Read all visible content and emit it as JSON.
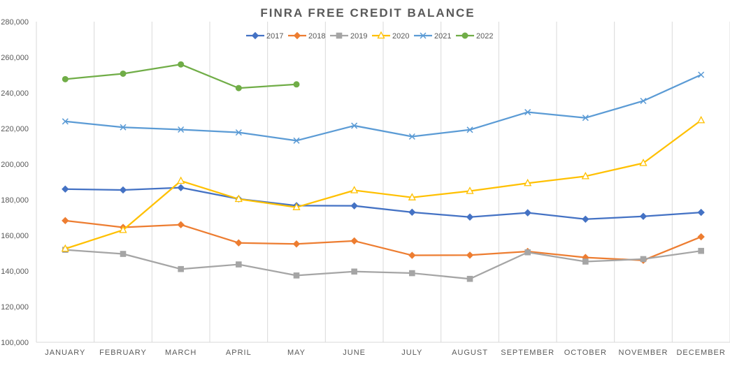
{
  "chart_data": {
    "type": "line",
    "title": "FINRA FREE CREDIT BALANCE",
    "xlabel": "",
    "ylabel": "",
    "categories": [
      "JANUARY",
      "FEBRUARY",
      "MARCH",
      "APRIL",
      "MAY",
      "JUNE",
      "JULY",
      "AUGUST",
      "SEPTEMBER",
      "OCTOBER",
      "NOVEMBER",
      "DECEMBER"
    ],
    "ylim": [
      100000,
      280000
    ],
    "yticks": [
      100000,
      120000,
      140000,
      160000,
      180000,
      200000,
      220000,
      240000,
      260000,
      280000
    ],
    "ytick_labels": [
      "100,000",
      "120,000",
      "140,000",
      "160,000",
      "180,000",
      "200,000",
      "220,000",
      "240,000",
      "260,000",
      "280,000"
    ],
    "grid": "vertical",
    "legend_position": "top",
    "series": [
      {
        "name": "2017",
        "color": "#4472c4",
        "marker": "diamond",
        "values": [
          186000,
          185500,
          186800,
          180500,
          176700,
          176600,
          173000,
          170300,
          172700,
          169100,
          170700,
          172900
        ]
      },
      {
        "name": "2018",
        "color": "#ed7d31",
        "marker": "diamond",
        "values": [
          168300,
          164500,
          166000,
          155800,
          155200,
          156900,
          148800,
          148900,
          151000,
          147600,
          146000,
          159200
        ]
      },
      {
        "name": "2019",
        "color": "#a5a5a5",
        "marker": "square",
        "values": [
          151900,
          149600,
          141100,
          143700,
          137500,
          139700,
          138800,
          135600,
          150500,
          145300,
          146700,
          151300
        ]
      },
      {
        "name": "2020",
        "color": "#ffc000",
        "marker": "triangle",
        "values": [
          152500,
          163000,
          190600,
          180400,
          175800,
          185300,
          181300,
          184900,
          189300,
          193200,
          200600,
          224600
        ]
      },
      {
        "name": "2021",
        "color": "#5b9bd5",
        "marker": "x",
        "values": [
          224000,
          220700,
          219400,
          217800,
          213200,
          221600,
          215500,
          219300,
          229200,
          226000,
          235500,
          250200
        ]
      },
      {
        "name": "2022",
        "color": "#70ad47",
        "marker": "circle",
        "values": [
          247700,
          250800,
          256000,
          242700,
          244800,
          null,
          null,
          null,
          null,
          null,
          null,
          null
        ]
      }
    ]
  }
}
